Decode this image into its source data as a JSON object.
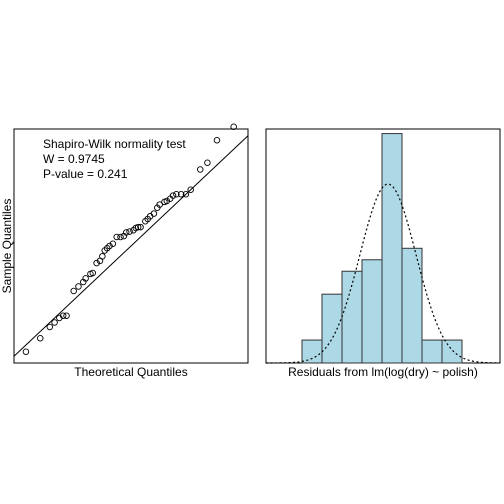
{
  "chart_data": [
    {
      "type": "scatter",
      "subtype": "qq-plot",
      "xlabel": "Theoretical Quantiles",
      "ylabel": "Sample Quantiles",
      "annotation": [
        "Shapiro-Wilk normality test",
        "W = 0.9745",
        "P-value = 0.241"
      ],
      "xlim": [
        -2.45,
        2.45
      ],
      "ylim": [
        -2.6,
        2.6
      ],
      "reference_line": [
        [
          -2.45,
          -2.45
        ],
        [
          2.45,
          2.45
        ]
      ],
      "points": [
        [
          -2.2,
          -2.35
        ],
        [
          -1.9,
          -2.05
        ],
        [
          -1.7,
          -1.8
        ],
        [
          -1.6,
          -1.7
        ],
        [
          -1.5,
          -1.6
        ],
        [
          -1.42,
          -1.55
        ],
        [
          -1.35,
          -1.55
        ],
        [
          -1.2,
          -1.0
        ],
        [
          -1.1,
          -0.9
        ],
        [
          -1.0,
          -0.8
        ],
        [
          -0.95,
          -0.72
        ],
        [
          -0.85,
          -0.62
        ],
        [
          -0.8,
          -0.6
        ],
        [
          -0.72,
          -0.38
        ],
        [
          -0.65,
          -0.33
        ],
        [
          -0.6,
          -0.23
        ],
        [
          -0.55,
          -0.1
        ],
        [
          -0.5,
          -0.05
        ],
        [
          -0.45,
          0.0
        ],
        [
          -0.38,
          0.05
        ],
        [
          -0.3,
          0.2
        ],
        [
          -0.22,
          0.2
        ],
        [
          -0.15,
          0.22
        ],
        [
          -0.1,
          0.3
        ],
        [
          -0.03,
          0.32
        ],
        [
          0.05,
          0.35
        ],
        [
          0.1,
          0.4
        ],
        [
          0.15,
          0.42
        ],
        [
          0.2,
          0.42
        ],
        [
          0.3,
          0.55
        ],
        [
          0.35,
          0.6
        ],
        [
          0.4,
          0.66
        ],
        [
          0.48,
          0.72
        ],
        [
          0.55,
          0.85
        ],
        [
          0.6,
          0.92
        ],
        [
          0.7,
          0.98
        ],
        [
          0.75,
          1.0
        ],
        [
          0.82,
          1.05
        ],
        [
          0.88,
          1.12
        ],
        [
          0.95,
          1.15
        ],
        [
          1.05,
          1.15
        ],
        [
          1.15,
          1.15
        ],
        [
          1.25,
          1.25
        ],
        [
          1.45,
          1.7
        ],
        [
          1.6,
          1.85
        ],
        [
          1.8,
          2.35
        ],
        [
          2.15,
          2.65
        ]
      ]
    },
    {
      "type": "bar",
      "subtype": "histogram",
      "xlabel": "Residuals from lm(log(dry) ~ polish)",
      "bin_edges": [
        -2.5,
        -2.0,
        -1.5,
        -1.0,
        -0.5,
        0.0,
        0.5,
        1.0,
        1.5
      ],
      "counts": [
        1,
        3,
        4,
        4.5,
        10,
        5,
        1,
        1
      ],
      "ylim": [
        0,
        10.2
      ],
      "xlim": [
        -3.4,
        2.45
      ],
      "density_curve": {
        "style": "dotted",
        "mean": -0.35,
        "sd": 0.7,
        "peak": 7.8
      },
      "colors": {
        "bar_fill": "#add8e6",
        "bar_stroke": "#333333"
      }
    }
  ]
}
